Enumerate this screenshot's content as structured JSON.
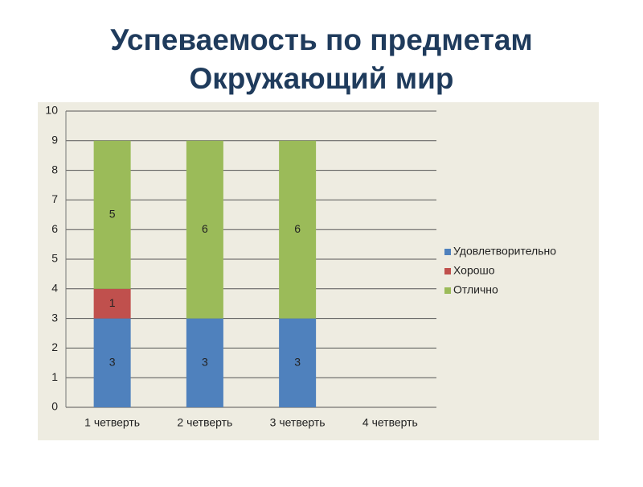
{
  "chart_data": {
    "type": "stacked_bar",
    "title": [
      "Успеваемость  по предметам",
      "Окружающий мир"
    ],
    "categories": [
      "1 четверть",
      "2 четверть",
      "3 четверть",
      "4 четверть"
    ],
    "series": [
      {
        "name": "Удовлетворительно",
        "color": "#4f81bd",
        "values": [
          3,
          3,
          3,
          null
        ]
      },
      {
        "name": "Хорошо",
        "color": "#c0504d",
        "values": [
          1,
          null,
          null,
          null
        ]
      },
      {
        "name": "Отлично",
        "color": "#9bbb59",
        "values": [
          5,
          6,
          6,
          null
        ]
      }
    ],
    "ylim": [
      0,
      10
    ],
    "yticks": [
      0,
      1,
      2,
      3,
      4,
      5,
      6,
      7,
      8,
      9,
      10
    ],
    "grid": true,
    "legend": "right"
  }
}
